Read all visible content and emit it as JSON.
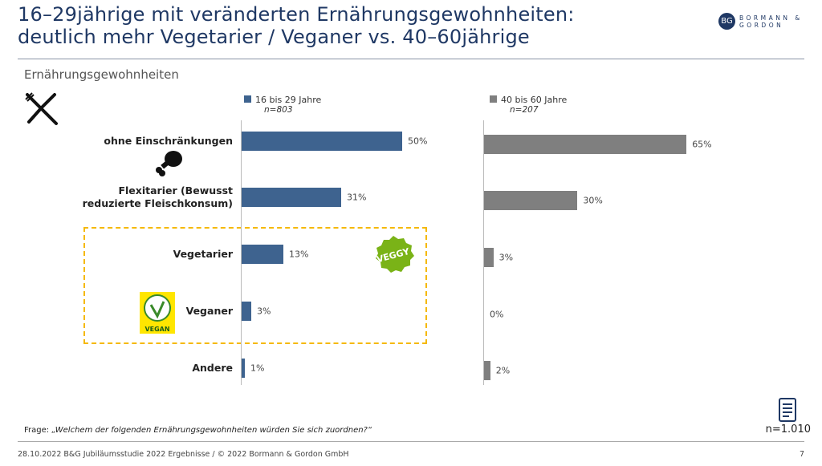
{
  "header": {
    "title_line1": "16–29jährige mit veränderten Ernährungsgewohnheiten:",
    "title_line2": "deutlich mehr Vegetarier / Veganer vs. 40–60jährige",
    "logo_text": "BORMANN & GORDON",
    "logo_mark": "BG"
  },
  "subtitle": "Ernährungsgewohnheiten",
  "chart_data": {
    "type": "bar",
    "orientation": "horizontal",
    "categories": [
      "ohne Einschränkungen",
      "Flexitarier (Bewusst reduzierte Fleischkonsum)",
      "Vegetarier",
      "Veganer",
      "Andere"
    ],
    "series": [
      {
        "name": "16 bis 29 Jahre",
        "n": "n=803",
        "values": [
          50,
          31,
          13,
          3,
          1
        ],
        "labels": [
          "50%",
          "31%",
          "13%",
          "3%",
          "1%"
        ],
        "color": "#3E638F"
      },
      {
        "name": "40 bis 60 Jahre",
        "n": "n=207",
        "values": [
          65,
          30,
          3,
          0,
          2
        ],
        "labels": [
          "65%",
          "30%",
          "3%",
          "0%",
          "2%"
        ],
        "color": "#7F7F7F"
      }
    ],
    "highlight_color": "#F5B800"
  },
  "icons": {
    "vegan_label": "VEGAN",
    "veggy_label": "VEGGY"
  },
  "footer": {
    "frage_prefix": "Frage: ",
    "frage": "„Welchem der folgenden Ernährungsgewohnheiten würden Sie sich zuordnen?“",
    "n": "n=1.010",
    "text": "28.10.2022   B&G Jubiläumsstudie 2022 Ergebnisse / © 2022 Bormann & Gordon GmbH",
    "page": "7"
  }
}
